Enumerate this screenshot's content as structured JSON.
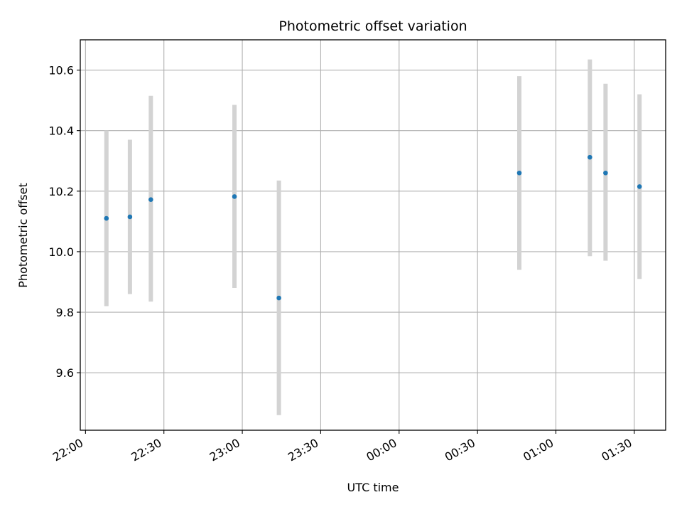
{
  "chart_data": {
    "type": "scatter",
    "title": "Photometric offset variation",
    "xlabel": "UTC time",
    "ylabel": "Photometric offset",
    "xlim": [
      "21:58",
      "01:42"
    ],
    "ylim": [
      9.41,
      10.7
    ],
    "x_ticks": [
      "22:00",
      "22:30",
      "23:00",
      "23:30",
      "00:00",
      "00:30",
      "01:00",
      "01:30"
    ],
    "y_ticks": [
      9.6,
      9.8,
      10.0,
      10.2,
      10.4,
      10.6
    ],
    "grid": true,
    "point_color": "#1f77b4",
    "errorbar_color": "#d3d3d3",
    "series": [
      {
        "x": [
          "22:08",
          "22:17",
          "22:25",
          "22:57",
          "23:14",
          "00:46",
          "01:13",
          "01:19",
          "01:32"
        ],
        "y": [
          10.11,
          10.115,
          10.172,
          10.182,
          9.847,
          10.26,
          10.312,
          10.26,
          10.215
        ],
        "yerr_low": [
          9.82,
          9.86,
          9.835,
          9.88,
          9.46,
          9.94,
          9.985,
          9.97,
          9.91
        ],
        "yerr_high": [
          10.4,
          10.37,
          10.515,
          10.485,
          10.235,
          10.58,
          10.635,
          10.555,
          10.52
        ]
      }
    ]
  }
}
